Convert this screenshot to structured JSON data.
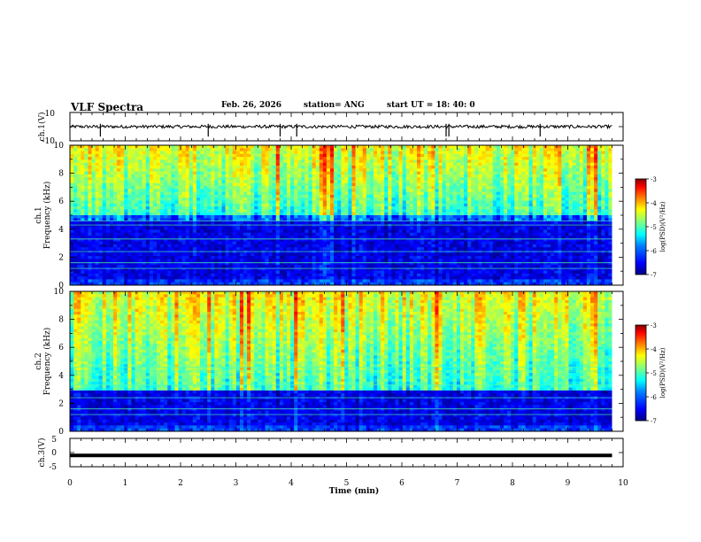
{
  "header": {
    "title": "VLF Spectra",
    "date": "Feb. 26, 2026",
    "station": "station= ANG",
    "start": "start  UT  =   18: 40: 0"
  },
  "chart_data": [
    {
      "type": "line",
      "name": "ch1-waveform",
      "ylabel": "ch.1(V)",
      "yticks": [
        "10",
        "-10"
      ],
      "ylim": [
        -10,
        10
      ],
      "baseline": 0,
      "spikes_x_min": [
        0.55,
        2.5,
        3.8,
        4.1,
        6.8,
        6.85,
        8.5
      ],
      "data_end_min": 9.8
    },
    {
      "type": "heatmap",
      "name": "ch1-spectrogram",
      "ylabel_top": "ch.1",
      "ylabel": "Frequency (kHz)",
      "yticks": [
        "10",
        "8",
        "6",
        "4",
        "2",
        "0"
      ],
      "ylim": [
        0,
        10
      ],
      "colorbar": {
        "label": "log(PSD)(V²/Hz)",
        "ticks": [
          "-3",
          "-4",
          "-5",
          "-6",
          "-7"
        ],
        "range": [
          -7,
          -3
        ]
      },
      "quiet_band_khz": [
        0.5,
        4.5
      ],
      "active_band_khz": [
        5,
        10
      ],
      "data_end_min": 9.8
    },
    {
      "type": "heatmap",
      "name": "ch2-spectrogram",
      "ylabel_top": "ch.2",
      "ylabel": "Frequency (kHz)",
      "yticks": [
        "10",
        "8",
        "6",
        "4",
        "2",
        "0"
      ],
      "ylim": [
        0,
        10
      ],
      "colorbar": {
        "label": "log(PSD)(V²/Hz)",
        "ticks": [
          "-3",
          "-4",
          "-5",
          "-6",
          "-7"
        ],
        "range": [
          -7,
          -3
        ]
      },
      "quiet_band_khz": [
        0.5,
        3
      ],
      "active_band_khz": [
        3,
        10
      ],
      "data_end_min": 9.8
    },
    {
      "type": "line",
      "name": "ch3-waveform",
      "ylabel": "ch.3(V)",
      "yticks": [
        "5",
        "0",
        "-5"
      ],
      "ylim": [
        -5,
        5
      ],
      "baseline": -1,
      "data_end_min": 9.8
    }
  ],
  "xaxis": {
    "label": "Time (min)",
    "ticks": [
      "0",
      "1",
      "2",
      "3",
      "4",
      "5",
      "6",
      "7",
      "8",
      "9",
      "10"
    ],
    "xlim": [
      0,
      10
    ]
  },
  "colors": {
    "axis": "#000000",
    "colormap": [
      "#000080",
      "#0000ff",
      "#0080ff",
      "#00ffff",
      "#80ff80",
      "#ffff00",
      "#ff8000",
      "#ff0000",
      "#800000"
    ]
  }
}
